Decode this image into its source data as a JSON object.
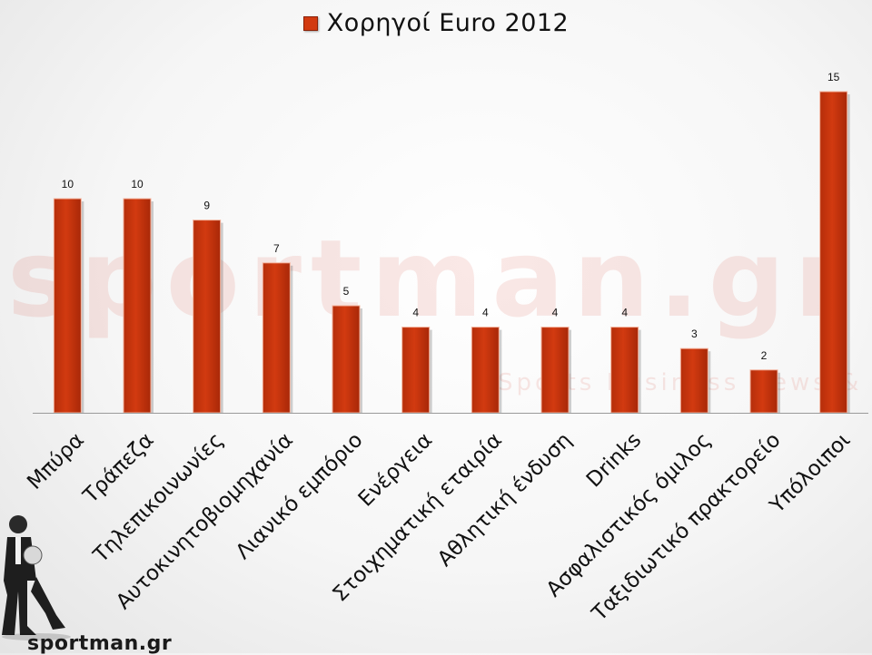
{
  "chart_data": {
    "type": "bar",
    "categories": [
      "Μπύρα",
      "Τράπεζα",
      "Τηλεπικοινωνίες",
      "Αυτοκινητοβιομηχανία",
      "Λιανικό εμπόριο",
      "Ενέργεια",
      "Στοιχηματική εταιρία",
      "Αθλητική ένδυση",
      "Drinks",
      "Ασφαλιστικός όμιλος",
      "Ταξιδιωτικό πρακτορείο",
      "Υπόλοιποι"
    ],
    "series": [
      {
        "name": "Χορηγοί Euro 2012",
        "values": [
          10,
          10,
          9,
          7,
          5,
          4,
          4,
          4,
          4,
          3,
          2,
          15
        ]
      }
    ],
    "legend_position": "top-center",
    "ylim": [
      0,
      15
    ],
    "grid": false,
    "bar_color": "#d23a10"
  },
  "watermark": {
    "text": "sportman.gr",
    "tagline": "Sports Business News & Analysis"
  },
  "logo": {
    "text": "sportman.gr"
  }
}
